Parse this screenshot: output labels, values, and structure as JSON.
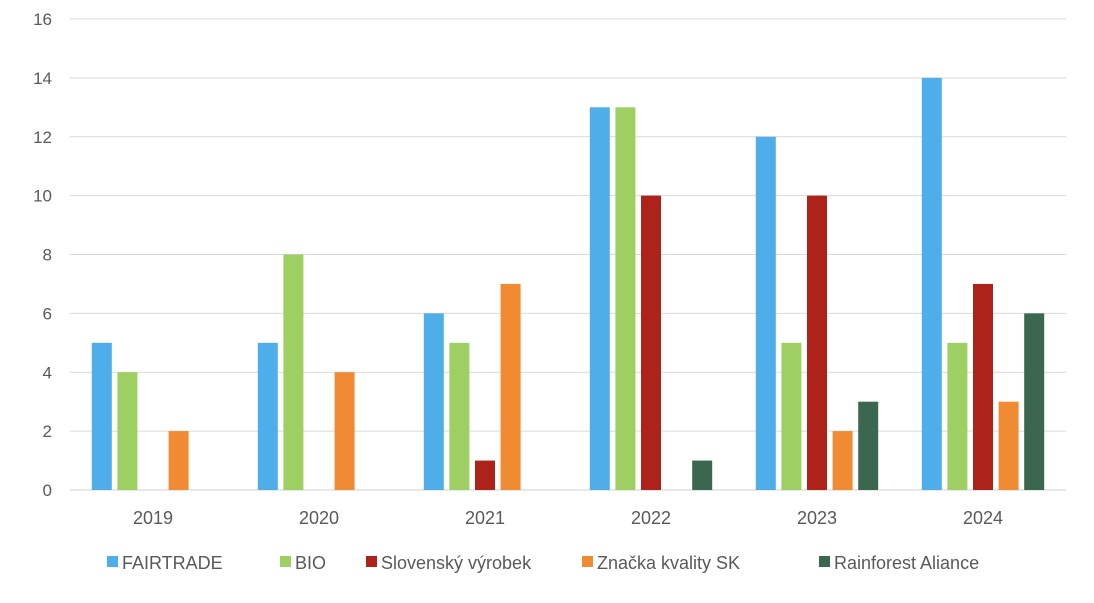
{
  "chart_data": {
    "type": "bar",
    "title": "",
    "xlabel": "",
    "ylabel": "",
    "ylim": [
      0,
      16
    ],
    "yticks": [
      0,
      2,
      4,
      6,
      8,
      10,
      12,
      14,
      16
    ],
    "grid": true,
    "legend_position": "bottom",
    "categories": [
      "2019",
      "2020",
      "2021",
      "2022",
      "2023",
      "2024"
    ],
    "series": [
      {
        "name": "FAIRTRADE",
        "color": "#4FAEEA",
        "values": [
          5,
          5,
          6,
          13,
          12,
          14
        ]
      },
      {
        "name": "BIO",
        "color": "#9DCF62",
        "values": [
          4,
          8,
          5,
          13,
          5,
          5
        ]
      },
      {
        "name": "Slovenský výrobek",
        "color": "#AD2319",
        "values": [
          0,
          0,
          1,
          10,
          10,
          7
        ]
      },
      {
        "name": "Značka kvality SK",
        "color": "#F08A33",
        "values": [
          2,
          4,
          7,
          0,
          2,
          3
        ]
      },
      {
        "name": "Rainforest Aliance",
        "color": "#3B6650",
        "values": [
          0,
          0,
          0,
          1,
          3,
          6
        ]
      }
    ]
  }
}
